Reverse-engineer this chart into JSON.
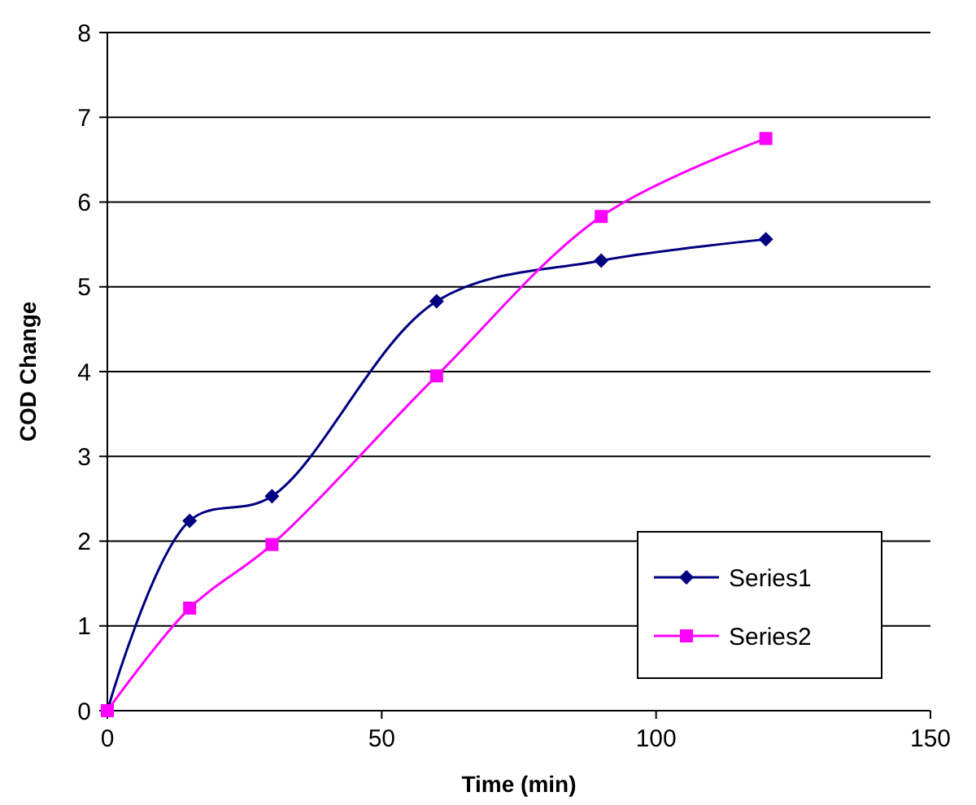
{
  "chart_data": {
    "type": "line",
    "xlabel": "Time (min)",
    "ylabel": "COD Change",
    "x": [
      0,
      15,
      30,
      60,
      90,
      120
    ],
    "series": [
      {
        "name": "Series1",
        "color": "#000080",
        "marker": "diamond",
        "values": [
          0,
          2.24,
          2.53,
          4.83,
          5.31,
          5.56
        ]
      },
      {
        "name": "Series2",
        "color": "#ff00ff",
        "marker": "square",
        "values": [
          0,
          1.21,
          1.96,
          3.95,
          5.83,
          6.75
        ]
      }
    ],
    "xlim": [
      0,
      150
    ],
    "xticks": [
      0,
      50,
      100,
      150
    ],
    "ylim": [
      0,
      8
    ],
    "yticks": [
      0,
      1,
      2,
      3,
      4,
      5,
      6,
      7,
      8
    ],
    "grid": "y",
    "legend": "bottom right",
    "line_style": "solid"
  }
}
